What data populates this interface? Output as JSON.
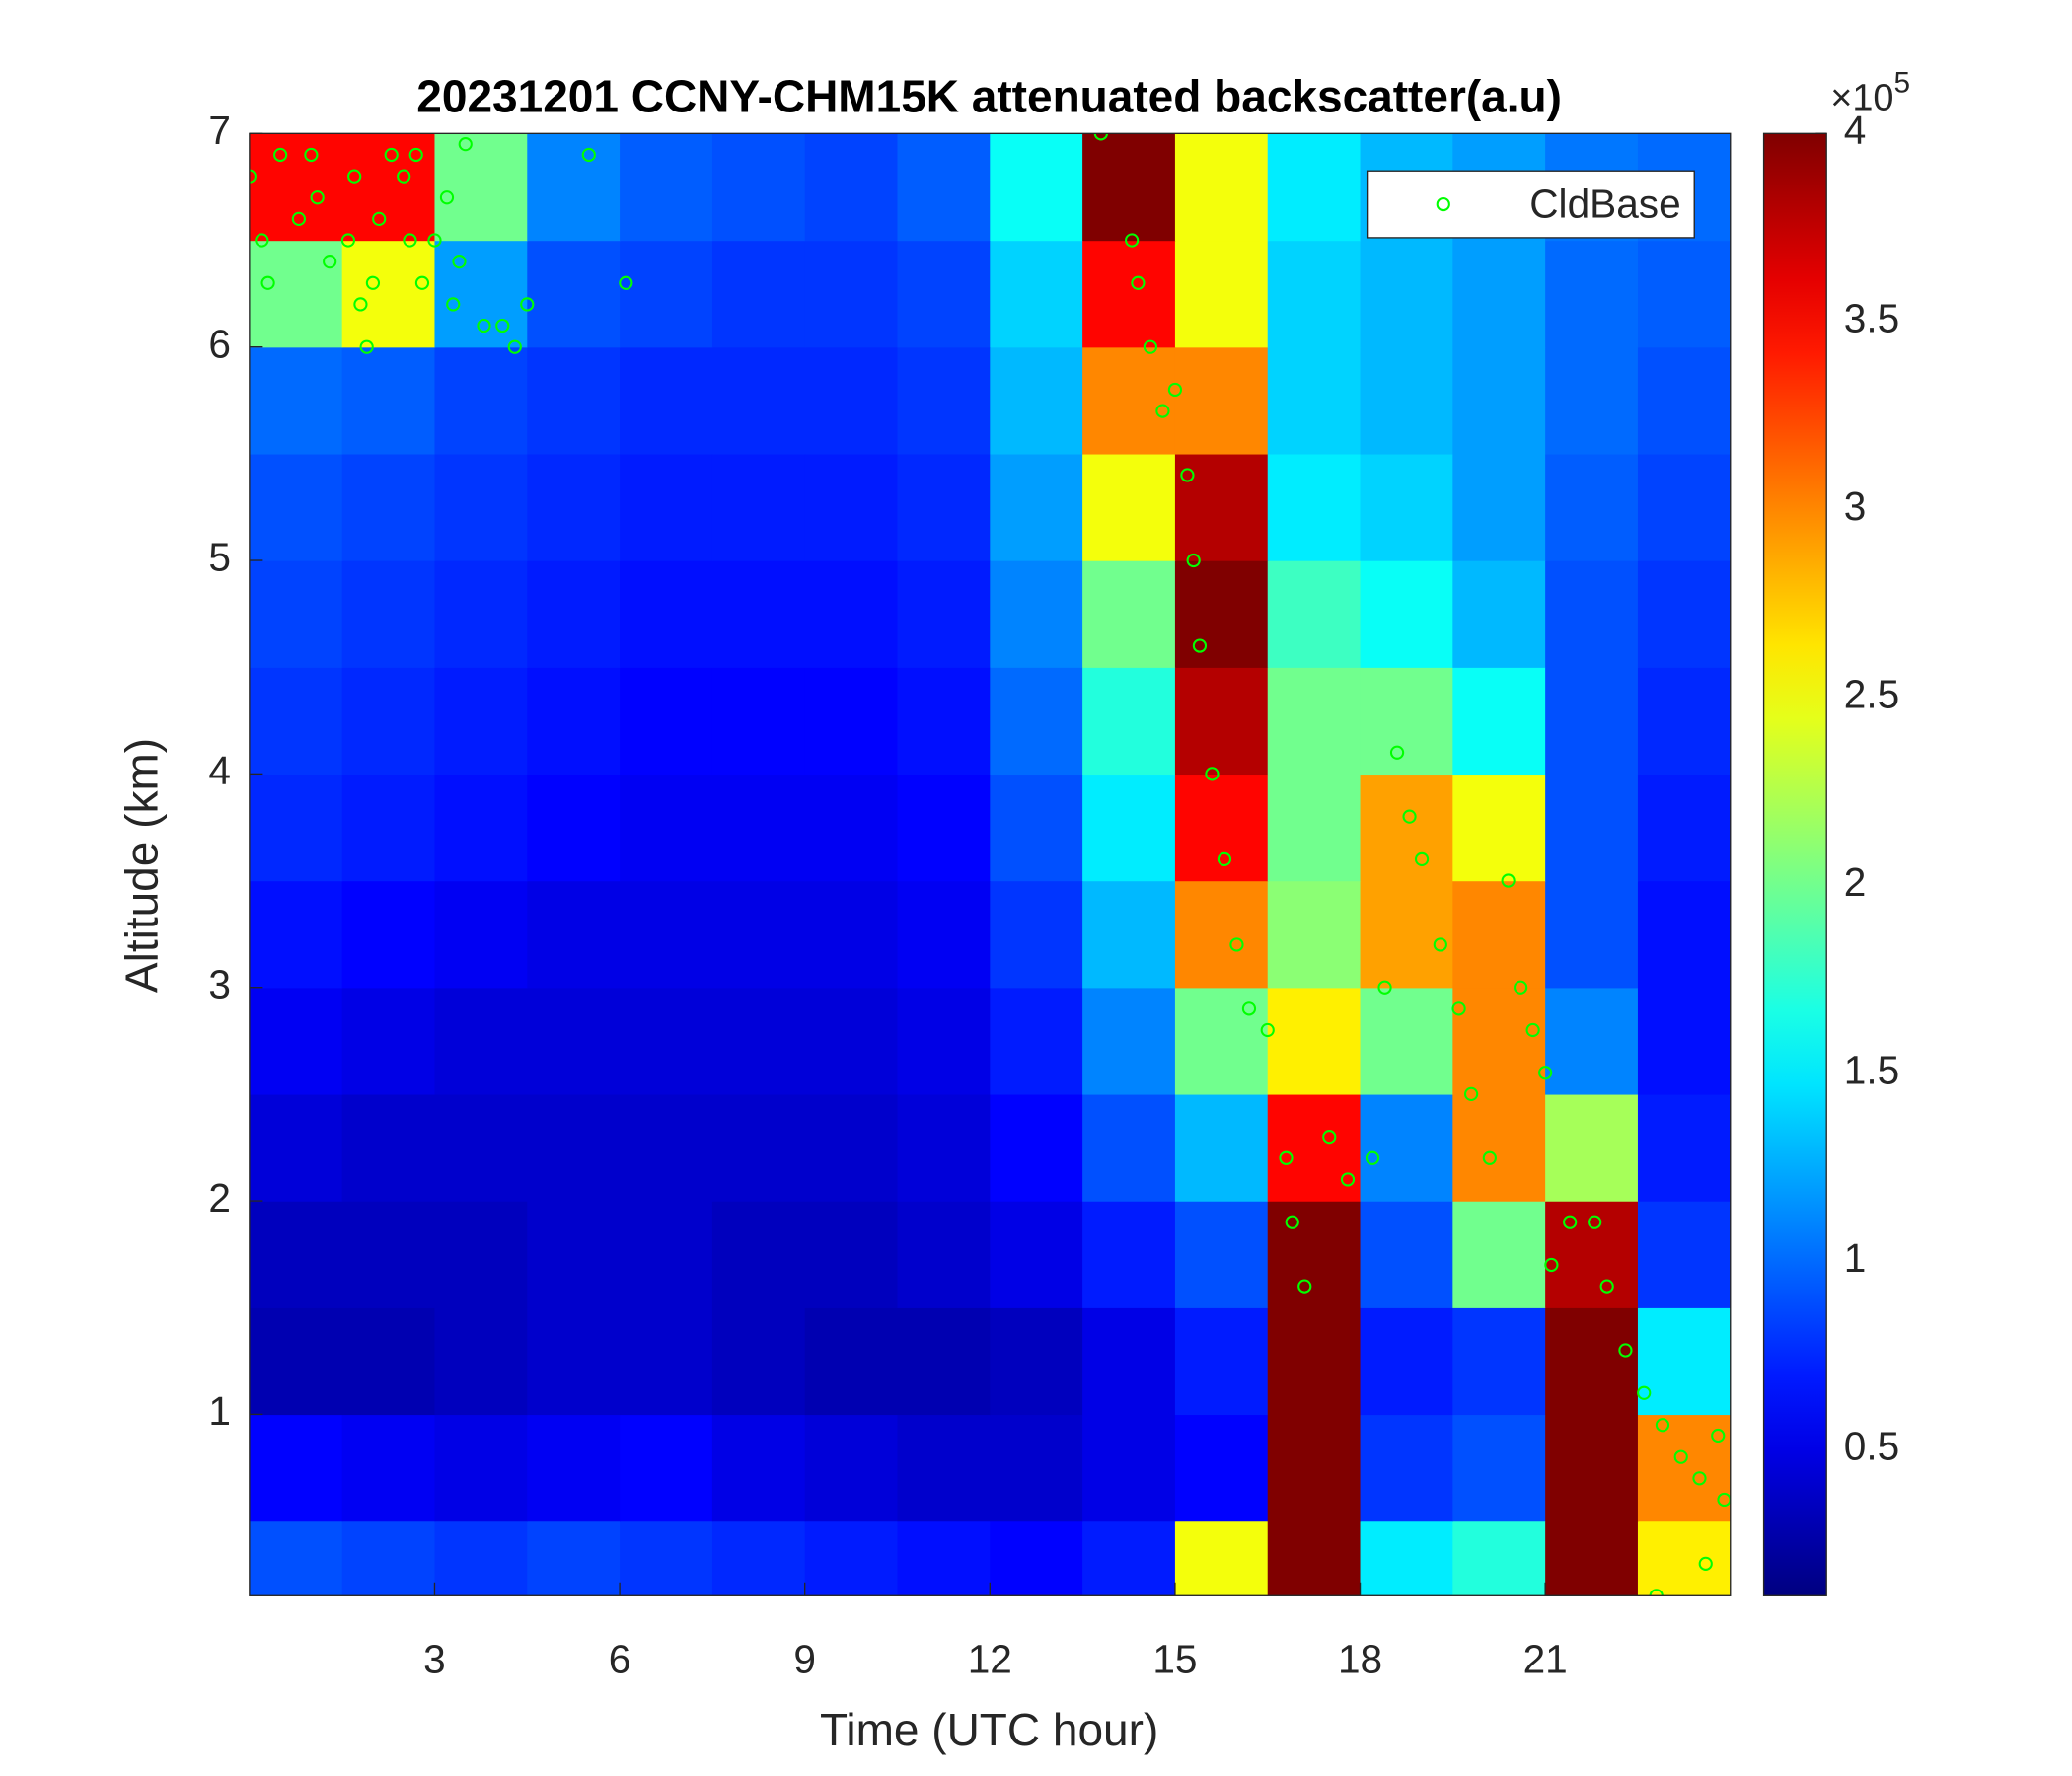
{
  "chart_data": {
    "type": "heatmap",
    "title": "20231201 CCNY-CHM15K attenuated backscatter(a.u)",
    "x_label": "Time (UTC hour)",
    "y_label": "Altitude (km)",
    "xlim": [
      0,
      24
    ],
    "ylim": [
      0.15,
      7
    ],
    "xticks": [
      3,
      6,
      9,
      12,
      15,
      18,
      21
    ],
    "yticks": [
      1,
      2,
      3,
      4,
      5,
      6,
      7
    ],
    "x_bins": [
      0,
      1.5,
      3,
      4.5,
      6,
      7.5,
      9,
      10.5,
      12,
      13.5,
      15,
      16.5,
      18,
      19.5,
      21,
      22.5,
      24
    ],
    "y_bins": [
      0.15,
      0.5,
      1,
      1.5,
      2,
      2.5,
      3,
      3.5,
      4,
      4.5,
      5,
      5.5,
      6,
      6.5,
      7
    ],
    "z": [
      [
        90000,
        85000,
        80000,
        85000,
        80000,
        75000,
        70000,
        65000,
        60000,
        70000,
        250000,
        400000,
        150000,
        170000,
        400000,
        260000
      ],
      [
        60000,
        55000,
        50000,
        55000,
        60000,
        50000,
        45000,
        40000,
        40000,
        50000,
        60000,
        400000,
        80000,
        90000,
        400000,
        300000
      ],
      [
        30000,
        30000,
        35000,
        40000,
        40000,
        35000,
        30000,
        30000,
        35000,
        50000,
        70000,
        400000,
        70000,
        80000,
        400000,
        150000
      ],
      [
        35000,
        35000,
        35000,
        40000,
        40000,
        35000,
        35000,
        40000,
        50000,
        70000,
        90000,
        400000,
        90000,
        200000,
        380000,
        80000
      ],
      [
        45000,
        40000,
        40000,
        40000,
        40000,
        40000,
        40000,
        45000,
        60000,
        90000,
        130000,
        350000,
        110000,
        300000,
        220000,
        70000
      ],
      [
        55000,
        50000,
        45000,
        45000,
        45000,
        45000,
        45000,
        50000,
        70000,
        110000,
        200000,
        260000,
        200000,
        300000,
        110000,
        65000
      ],
      [
        65000,
        60000,
        55000,
        50000,
        50000,
        50000,
        50000,
        55000,
        80000,
        130000,
        300000,
        210000,
        290000,
        300000,
        90000,
        65000
      ],
      [
        75000,
        70000,
        65000,
        60000,
        55000,
        55000,
        55000,
        60000,
        90000,
        150000,
        350000,
        200000,
        290000,
        250000,
        90000,
        70000
      ],
      [
        80000,
        75000,
        70000,
        65000,
        60000,
        60000,
        60000,
        65000,
        100000,
        170000,
        380000,
        200000,
        200000,
        160000,
        90000,
        75000
      ],
      [
        85000,
        80000,
        75000,
        70000,
        65000,
        65000,
        65000,
        70000,
        110000,
        200000,
        400000,
        180000,
        160000,
        130000,
        90000,
        80000
      ],
      [
        90000,
        85000,
        80000,
        75000,
        70000,
        70000,
        70000,
        75000,
        120000,
        250000,
        380000,
        150000,
        140000,
        120000,
        95000,
        85000
      ],
      [
        100000,
        95000,
        85000,
        80000,
        75000,
        75000,
        75000,
        80000,
        130000,
        300000,
        300000,
        140000,
        130000,
        120000,
        100000,
        90000
      ],
      [
        200000,
        250000,
        120000,
        90000,
        85000,
        80000,
        80000,
        85000,
        140000,
        350000,
        250000,
        140000,
        130000,
        120000,
        100000,
        95000
      ],
      [
        350000,
        350000,
        200000,
        110000,
        95000,
        90000,
        85000,
        95000,
        160000,
        400000,
        250000,
        150000,
        130000,
        120000,
        105000,
        100000
      ]
    ],
    "colormap": "jet",
    "clim": [
      11000,
      400000
    ],
    "colorbar_ticks": [
      {
        "value": 50000,
        "label": "0.5"
      },
      {
        "value": 100000,
        "label": "1"
      },
      {
        "value": 150000,
        "label": "1.5"
      },
      {
        "value": 200000,
        "label": "2"
      },
      {
        "value": 250000,
        "label": "2.5"
      },
      {
        "value": 300000,
        "label": "3"
      },
      {
        "value": 350000,
        "label": "3.5"
      },
      {
        "value": 400000,
        "label": "4"
      }
    ],
    "colorbar_exponent": "×10",
    "colorbar_exponent_power": "5",
    "legend": "upper right",
    "series": [
      {
        "name": "CldBase",
        "color": "#00ff00",
        "x": [
          0.0,
          0.2,
          0.3,
          0.5,
          0.8,
          1.0,
          1.1,
          1.3,
          1.6,
          1.7,
          1.8,
          1.9,
          2.0,
          2.1,
          2.3,
          2.5,
          2.6,
          2.7,
          2.8,
          3.0,
          3.2,
          3.3,
          3.4,
          3.5,
          3.8,
          4.1,
          4.3,
          4.5,
          5.5,
          6.1,
          13.8,
          14.3,
          14.4,
          14.6,
          14.8,
          15.0,
          15.2,
          15.3,
          15.4,
          15.6,
          15.8,
          16.0,
          16.2,
          16.5,
          16.8,
          16.9,
          17.1,
          17.5,
          17.8,
          18.2,
          18.4,
          18.6,
          18.8,
          19.0,
          19.3,
          19.6,
          19.8,
          20.1,
          20.4,
          20.6,
          20.8,
          21.0,
          21.1,
          21.4,
          21.8,
          22.0,
          22.3,
          22.6,
          22.9,
          23.2,
          23.5,
          23.8,
          23.9,
          22.8,
          23.6
        ],
        "y": [
          6.8,
          6.5,
          6.3,
          6.9,
          6.6,
          6.9,
          6.7,
          6.4,
          6.5,
          6.8,
          6.2,
          6.0,
          6.3,
          6.6,
          6.9,
          6.8,
          6.5,
          6.9,
          6.3,
          6.5,
          6.7,
          6.2,
          6.4,
          6.95,
          6.1,
          6.1,
          6.0,
          6.2,
          6.9,
          6.3,
          7.0,
          6.5,
          6.3,
          6.0,
          5.7,
          5.8,
          5.4,
          5.0,
          4.6,
          4.0,
          3.6,
          3.2,
          2.9,
          2.8,
          2.2,
          1.9,
          1.6,
          2.3,
          2.1,
          2.2,
          3.0,
          4.1,
          3.8,
          3.6,
          3.2,
          2.9,
          2.5,
          2.2,
          3.5,
          3.0,
          2.8,
          2.6,
          1.7,
          1.9,
          1.9,
          1.6,
          1.3,
          1.1,
          0.95,
          0.8,
          0.7,
          0.9,
          0.6,
          0.15,
          0.3
        ]
      }
    ]
  }
}
